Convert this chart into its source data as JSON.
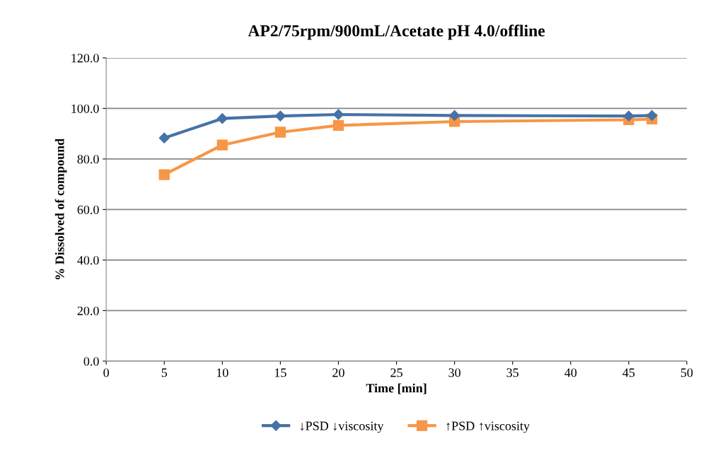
{
  "chart_data": {
    "type": "line",
    "title": "AP2/75rpm/900mL/Acetate pH 4.0/offline",
    "xlabel": "Time [min]",
    "ylabel": "% Dissolved of compound",
    "xlim": [
      0,
      50
    ],
    "xticks": [
      0,
      5,
      10,
      15,
      20,
      25,
      30,
      35,
      40,
      45,
      50
    ],
    "ylim": [
      0,
      120
    ],
    "yticks": [
      {
        "value": 0,
        "label": "0.0"
      },
      {
        "value": 20,
        "label": "20.0"
      },
      {
        "value": 40,
        "label": "40.0"
      },
      {
        "value": 60,
        "label": "60.0"
      },
      {
        "value": 80,
        "label": "80.0"
      },
      {
        "value": 100,
        "label": "100.0"
      },
      {
        "value": 120,
        "label": "120.0"
      }
    ],
    "grid": "y",
    "legend": "bottom",
    "line_style": "solid",
    "series": [
      {
        "name": "↓PSD ↓viscosity",
        "color": "#4572a7",
        "marker": "diamond",
        "x": [
          5,
          10,
          15,
          20,
          30,
          45,
          47
        ],
        "values": [
          88.3,
          96.0,
          97.0,
          97.6,
          97.2,
          97.0,
          97.2
        ]
      },
      {
        "name": "↑PSD ↑viscosity",
        "color": "#f79646",
        "marker": "square",
        "x": [
          5,
          10,
          15,
          20,
          30,
          45,
          47
        ],
        "values": [
          73.8,
          85.5,
          90.6,
          93.3,
          94.8,
          95.5,
          95.8
        ]
      }
    ]
  }
}
